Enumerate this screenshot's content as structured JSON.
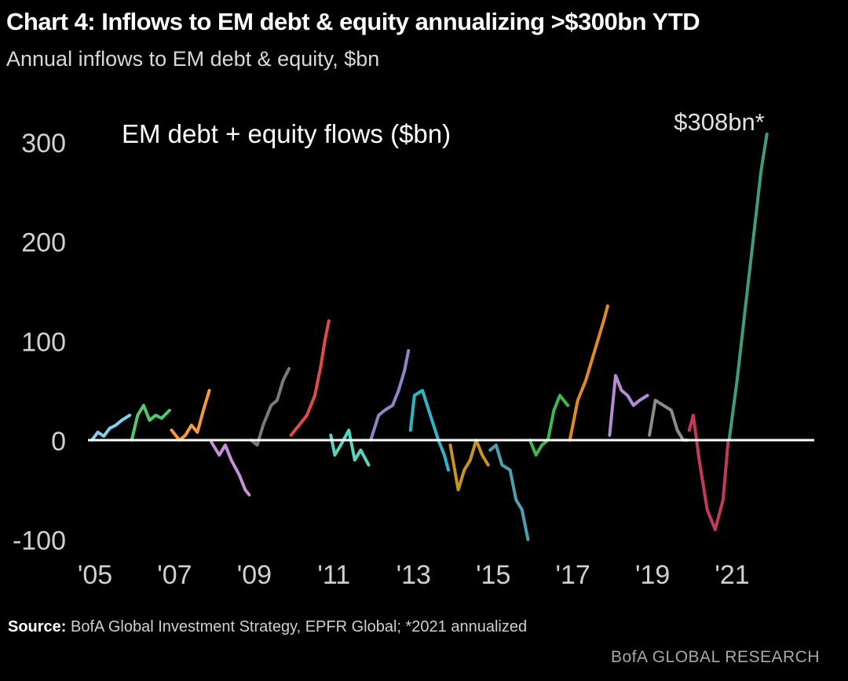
{
  "header": {
    "title": "Chart 4: Inflows to EM debt & equity annualizing >$300bn YTD",
    "subtitle": "Annual inflows to EM debt & equity, $bn"
  },
  "footer": {
    "source_label": "Source:",
    "source_text": "BofA Global Investment Strategy, EPFR Global; *2021 annualized",
    "brand": "BofA GLOBAL RESEARCH"
  },
  "chart_data": {
    "type": "line",
    "title": "EM debt + equity  flows ($bn)",
    "annotation": "$308bn*",
    "ylim": [
      -100,
      310
    ],
    "yticks": [
      300,
      200,
      100,
      0,
      -100
    ],
    "xlim": [
      2005,
      2023
    ],
    "xticks": [
      {
        "value": 2005,
        "label": "'05"
      },
      {
        "value": 2007,
        "label": "'07"
      },
      {
        "value": 2009,
        "label": "'09"
      },
      {
        "value": 2011,
        "label": "'11"
      },
      {
        "value": 2013,
        "label": "'13"
      },
      {
        "value": 2015,
        "label": "'15"
      },
      {
        "value": 2017,
        "label": "'17"
      },
      {
        "value": 2019,
        "label": "'19"
      },
      {
        "value": 2021,
        "label": "'21"
      }
    ],
    "zero_line": true,
    "grid": false,
    "series": [
      {
        "color": "#7fd0ef",
        "x": [
          2005.0,
          2005.15,
          2005.3,
          2005.45,
          2005.6,
          2005.75,
          2005.95
        ],
        "y": [
          0,
          8,
          4,
          12,
          15,
          20,
          25
        ]
      },
      {
        "color": "#4fc96b",
        "x": [
          2006.0,
          2006.15,
          2006.3,
          2006.45,
          2006.6,
          2006.75,
          2006.95
        ],
        "y": [
          0,
          25,
          35,
          20,
          25,
          22,
          30
        ]
      },
      {
        "color": "#f39a3b",
        "x": [
          2007.0,
          2007.2,
          2007.35,
          2007.5,
          2007.65,
          2007.8,
          2007.95
        ],
        "y": [
          10,
          0,
          5,
          15,
          8,
          30,
          50
        ]
      },
      {
        "color": "#c98fdb",
        "x": [
          2008.0,
          2008.2,
          2008.35,
          2008.5,
          2008.7,
          2008.85,
          2008.95
        ],
        "y": [
          -2,
          -15,
          -5,
          -20,
          -35,
          -50,
          -55
        ]
      },
      {
        "color": "#7a7a7a",
        "x": [
          2009.0,
          2009.15,
          2009.3,
          2009.5,
          2009.65,
          2009.8,
          2009.95
        ],
        "y": [
          0,
          -5,
          15,
          35,
          40,
          60,
          72
        ]
      },
      {
        "color": "#e04a4a",
        "x": [
          2010.0,
          2010.2,
          2010.4,
          2010.6,
          2010.75,
          2010.85,
          2010.95
        ],
        "y": [
          5,
          15,
          25,
          45,
          75,
          100,
          120
        ]
      },
      {
        "color": "#55d4c0",
        "x": [
          2011.0,
          2011.1,
          2011.25,
          2011.45,
          2011.6,
          2011.75,
          2011.95
        ],
        "y": [
          5,
          -15,
          -5,
          10,
          -20,
          -10,
          -25
        ]
      },
      {
        "color": "#8a86c8",
        "x": [
          2012.0,
          2012.2,
          2012.35,
          2012.55,
          2012.7,
          2012.85,
          2012.95
        ],
        "y": [
          0,
          25,
          30,
          35,
          50,
          70,
          90
        ]
      },
      {
        "color": "#2ab7c9",
        "x": [
          2013.0,
          2013.1,
          2013.3,
          2013.5,
          2013.7,
          2013.85,
          2013.95
        ],
        "y": [
          10,
          45,
          50,
          25,
          0,
          -15,
          -30
        ]
      },
      {
        "color": "#c8951c",
        "x": [
          2014.0,
          2014.2,
          2014.35,
          2014.5,
          2014.65,
          2014.8,
          2014.95
        ],
        "y": [
          -5,
          -50,
          -30,
          -20,
          0,
          -15,
          -25
        ]
      },
      {
        "color": "#4d9fb0",
        "x": [
          2015.0,
          2015.15,
          2015.3,
          2015.5,
          2015.65,
          2015.8,
          2015.95
        ],
        "y": [
          -10,
          -5,
          -25,
          -30,
          -60,
          -70,
          -100
        ]
      },
      {
        "color": "#3db84e",
        "x": [
          2016.0,
          2016.15,
          2016.3,
          2016.45,
          2016.6,
          2016.75,
          2016.95
        ],
        "y": [
          0,
          -15,
          -5,
          0,
          30,
          45,
          35
        ]
      },
      {
        "color": "#e08a24",
        "x": [
          2017.0,
          2017.2,
          2017.4,
          2017.55,
          2017.7,
          2017.85,
          2017.95
        ],
        "y": [
          0,
          40,
          60,
          80,
          100,
          120,
          135
        ]
      },
      {
        "color": "#b58ad6",
        "x": [
          2018.0,
          2018.15,
          2018.3,
          2018.45,
          2018.6,
          2018.75,
          2018.95
        ],
        "y": [
          5,
          65,
          50,
          45,
          35,
          40,
          45
        ]
      },
      {
        "color": "#8c8c8c",
        "x": [
          2019.0,
          2019.15,
          2019.35,
          2019.55,
          2019.7,
          2019.85,
          2019.95
        ],
        "y": [
          5,
          40,
          35,
          30,
          10,
          0,
          0
        ]
      },
      {
        "color": "#c23a5a",
        "x": [
          2020.0,
          2020.1,
          2020.25,
          2020.45,
          2020.65,
          2020.85,
          2020.98
        ],
        "y": [
          10,
          25,
          -20,
          -70,
          -90,
          -60,
          0
        ]
      },
      {
        "color": "#3f9c7c",
        "x": [
          2021.0,
          2021.2,
          2021.4,
          2021.6,
          2021.8,
          2021.95
        ],
        "y": [
          0,
          60,
          130,
          200,
          270,
          308
        ]
      }
    ]
  }
}
